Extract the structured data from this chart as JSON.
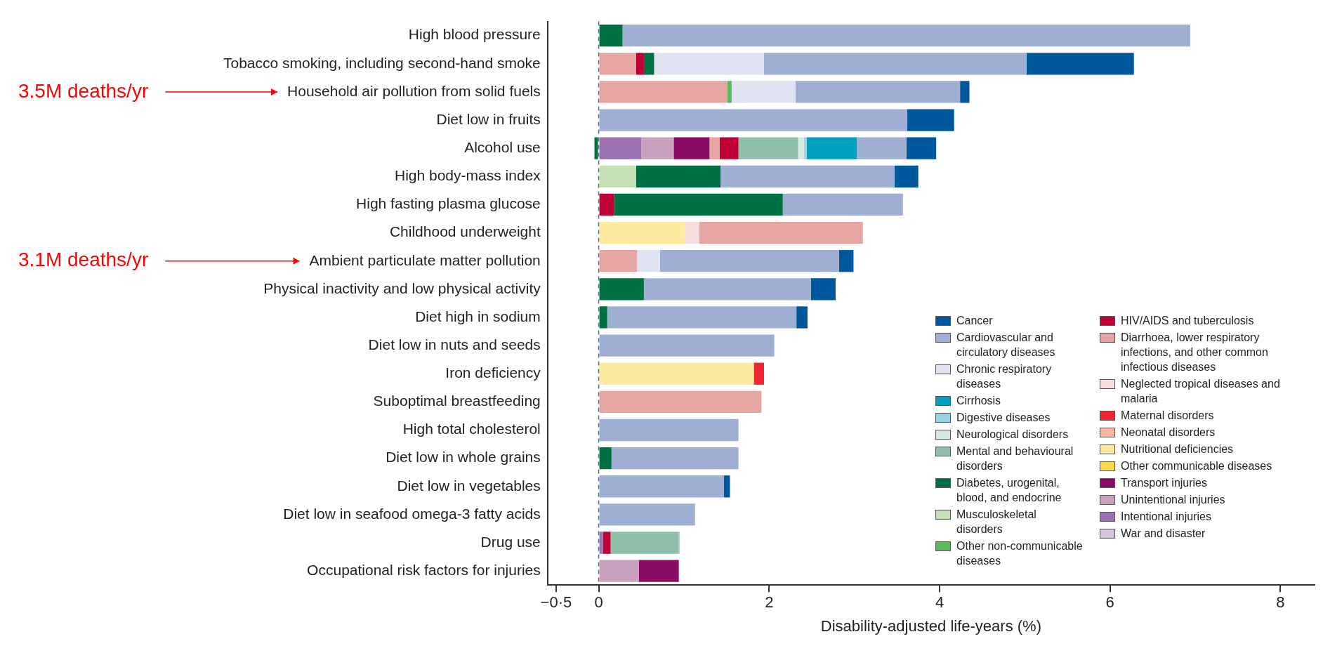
{
  "chart_data": {
    "type": "bar",
    "orientation": "horizontal",
    "stacked": true,
    "xlabel": "Disability-adjusted life-years (%)",
    "categories": [
      "High blood pressure",
      "Tobacco smoking, including second-hand smoke",
      "Household air pollution from solid fuels",
      "Diet low in fruits",
      "Alcohol use",
      "High body-mass index",
      "High fasting plasma glucose",
      "Childhood underweight",
      "Ambient particulate matter pollution",
      "Physical inactivity and low physical activity",
      "Diet high in sodium",
      "Diet low in nuts and seeds",
      "Iron deficiency",
      "Suboptimal breastfeeding",
      "High total cholesterol",
      "Diet low in whole grains",
      "Diet low in vegetables",
      "Diet low in seafood omega-3 fatty acids",
      "Drug use",
      "Occupational risk factors for injuries"
    ],
    "xlim": [
      -0.6,
      8.4
    ],
    "xticks": [
      {
        "value": -0.5,
        "label": "−0·5"
      },
      0,
      2,
      4,
      6,
      8
    ],
    "grid": false,
    "legend": "bottom right",
    "ref_lines": [
      {
        "axis": "x",
        "value": 0,
        "color": "#5a6e7a",
        "line_style": "dashed"
      }
    ],
    "annotations": [
      "3.5M deaths/yr",
      "3.1M deaths/yr"
    ],
    "series": [
      {
        "name": "War and disaster",
        "color": "#d4c3df",
        "values": [
          null,
          null,
          null,
          null,
          null,
          null,
          null,
          null,
          null,
          null,
          null,
          null,
          null,
          null,
          null,
          null,
          null,
          null,
          null,
          null
        ]
      },
      {
        "name": "Intentional injuries",
        "color": "#9a72b0",
        "values": [
          null,
          null,
          null,
          null,
          0.5,
          null,
          null,
          null,
          null,
          null,
          null,
          null,
          null,
          null,
          null,
          null,
          null,
          null,
          0.05,
          null
        ]
      },
      {
        "name": "Unintentional injuries",
        "color": "#caa0bf",
        "values": [
          null,
          null,
          null,
          null,
          0.38,
          null,
          null,
          null,
          null,
          null,
          null,
          null,
          null,
          null,
          null,
          null,
          null,
          null,
          null,
          0.47
        ]
      },
      {
        "name": "Transport injuries",
        "color": "#8b0c64",
        "values": [
          null,
          null,
          null,
          null,
          0.42,
          null,
          null,
          null,
          null,
          null,
          null,
          null,
          null,
          null,
          null,
          null,
          null,
          null,
          null,
          0.47
        ]
      },
      {
        "name": "Other communicable diseases",
        "color": "#fdd94a",
        "values": [
          null,
          null,
          null,
          null,
          null,
          null,
          null,
          null,
          null,
          null,
          null,
          null,
          null,
          null,
          null,
          null,
          null,
          null,
          null,
          null
        ]
      },
      {
        "name": "Nutritional deficiencies",
        "color": "#fde9a0",
        "values": [
          null,
          null,
          null,
          null,
          null,
          null,
          null,
          1.01,
          null,
          null,
          null,
          null,
          1.82,
          null,
          null,
          null,
          null,
          null,
          null,
          null
        ]
      },
      {
        "name": "Neonatal disorders",
        "color": "#f7b59e",
        "values": [
          null,
          null,
          null,
          null,
          null,
          null,
          null,
          null,
          null,
          null,
          null,
          null,
          null,
          null,
          null,
          null,
          null,
          null,
          null,
          null
        ]
      },
      {
        "name": "Maternal disorders",
        "color": "#ef2530",
        "values": [
          null,
          null,
          null,
          null,
          null,
          null,
          null,
          null,
          null,
          null,
          null,
          null,
          0.12,
          null,
          null,
          null,
          null,
          null,
          null,
          null
        ]
      },
      {
        "name": "Neglected tropical diseases and malaria",
        "color": "#f6dede",
        "values": [
          null,
          null,
          null,
          null,
          null,
          null,
          null,
          0.17,
          null,
          null,
          null,
          null,
          null,
          null,
          null,
          null,
          null,
          null,
          null,
          null
        ]
      },
      {
        "name": "Diarrhoea, lower respiratory infections, and other common infectious diseases",
        "color": "#e5a5a2",
        "values": [
          null,
          0.44,
          1.51,
          null,
          0.12,
          null,
          null,
          1.92,
          0.45,
          null,
          null,
          null,
          null,
          1.91,
          null,
          null,
          null,
          null,
          null,
          null
        ]
      },
      {
        "name": "HIV/AIDS and tuberculosis",
        "color": "#bd0035",
        "values": [
          null,
          0.09,
          null,
          null,
          0.22,
          null,
          0.18,
          null,
          null,
          null,
          null,
          null,
          null,
          null,
          null,
          null,
          null,
          null,
          0.09,
          null
        ]
      },
      {
        "name": "Other non-communicable diseases",
        "color": "#5cb85c",
        "values": [
          null,
          null,
          0.05,
          null,
          null,
          null,
          null,
          null,
          null,
          null,
          null,
          null,
          null,
          null,
          null,
          null,
          null,
          null,
          null,
          null
        ]
      },
      {
        "name": "Musculoskeletal disorders",
        "color": "#c6e0b6",
        "values": [
          null,
          null,
          null,
          null,
          null,
          0.44,
          null,
          null,
          null,
          null,
          null,
          null,
          null,
          null,
          null,
          null,
          null,
          null,
          null,
          null
        ]
      },
      {
        "name": "Diabetes, urogenital, blood, and endocrine",
        "color": "#006f42",
        "values": [
          0.28,
          0.12,
          null,
          null,
          -0.05,
          0.99,
          1.98,
          null,
          null,
          0.53,
          0.1,
          null,
          null,
          null,
          null,
          0.15,
          null,
          null,
          null,
          null
        ]
      },
      {
        "name": "Mental and behavioural disorders",
        "color": "#8fbfa8",
        "values": [
          null,
          null,
          null,
          null,
          0.7,
          null,
          null,
          null,
          null,
          null,
          null,
          null,
          null,
          null,
          null,
          null,
          null,
          null,
          0.8,
          null
        ]
      },
      {
        "name": "Neurological disorders",
        "color": "#d5e8df",
        "values": [
          null,
          null,
          null,
          null,
          0.07,
          null,
          null,
          null,
          null,
          null,
          null,
          null,
          null,
          null,
          null,
          null,
          null,
          null,
          null,
          null
        ]
      },
      {
        "name": "Digestive diseases",
        "color": "#94d3e3",
        "values": [
          null,
          null,
          null,
          null,
          0.03,
          null,
          null,
          null,
          null,
          null,
          null,
          null,
          null,
          null,
          null,
          null,
          null,
          null,
          0.01,
          null
        ]
      },
      {
        "name": "Cirrhosis",
        "color": "#00a0c0",
        "values": [
          null,
          null,
          null,
          null,
          0.59,
          null,
          null,
          null,
          null,
          null,
          null,
          null,
          null,
          null,
          null,
          null,
          null,
          null,
          null,
          null
        ]
      },
      {
        "name": "Chronic respiratory diseases",
        "color": "#dfe3f0",
        "values": [
          null,
          1.29,
          0.75,
          null,
          null,
          null,
          null,
          null,
          0.27,
          null,
          null,
          null,
          null,
          null,
          null,
          null,
          null,
          null,
          null,
          null
        ]
      },
      {
        "name": "Cardiovascular and circulatory diseases",
        "color": "#9eafd3",
        "values": [
          6.66,
          3.08,
          1.93,
          3.62,
          0.58,
          2.04,
          1.41,
          null,
          2.1,
          1.96,
          2.22,
          2.06,
          null,
          null,
          1.64,
          1.49,
          1.47,
          1.13,
          null,
          null
        ]
      },
      {
        "name": "Cancer",
        "color": "#00579c",
        "values": [
          null,
          1.26,
          0.11,
          0.55,
          0.35,
          0.28,
          null,
          null,
          0.17,
          0.29,
          0.13,
          null,
          null,
          null,
          null,
          null,
          0.07,
          null,
          null,
          null
        ]
      }
    ]
  }
}
